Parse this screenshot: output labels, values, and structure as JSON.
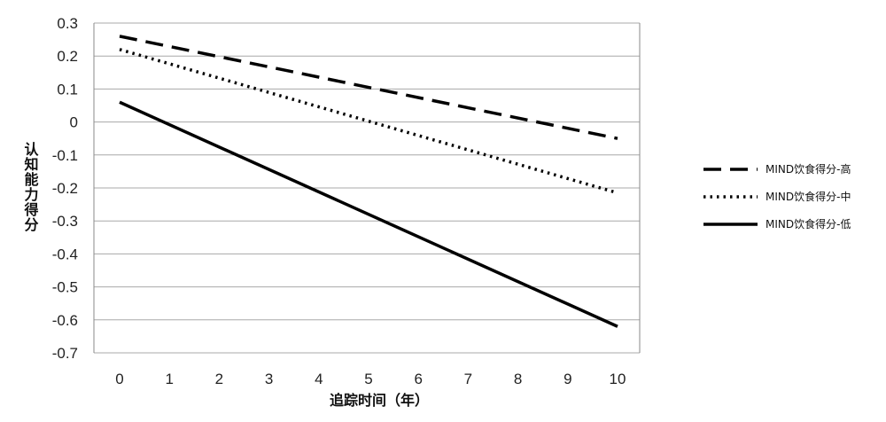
{
  "chart_data": {
    "type": "line",
    "xlabel": "追踪时间（年）",
    "ylabel": "认知能力得分",
    "x": [
      0,
      10
    ],
    "x_ticks": [
      "0",
      "1",
      "2",
      "3",
      "4",
      "5",
      "6",
      "7",
      "8",
      "9",
      "10"
    ],
    "y_ticks": [
      "0.3",
      "0.2",
      "0.1",
      "0",
      "-0.1",
      "-0.2",
      "-0.3",
      "-0.4",
      "-0.5",
      "-0.6",
      "-0.7"
    ],
    "xlim": [
      0,
      10
    ],
    "ylim": [
      -0.7,
      0.3
    ],
    "grid": "horizontal",
    "legend_position": "right",
    "series": [
      {
        "name": "MIND饮食得分-高",
        "values": [
          0.26,
          -0.05
        ],
        "style": "dashed"
      },
      {
        "name": "MIND饮食得分-中",
        "values": [
          0.22,
          -0.215
        ],
        "style": "dotted"
      },
      {
        "name": "MIND饮食得分-低",
        "values": [
          0.06,
          -0.62
        ],
        "style": "solid"
      }
    ]
  }
}
